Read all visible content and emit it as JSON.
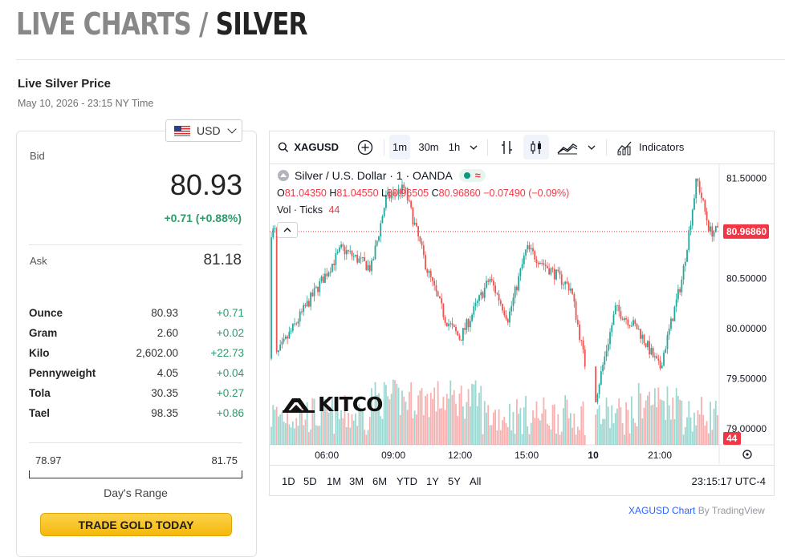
{
  "header": {
    "title_part1": "LIVE CHARTS / ",
    "title_part2": "SILVER"
  },
  "subheader": {
    "title": "Live Silver Price",
    "timestamp": "May 10, 2026 - 23:15 NY Time"
  },
  "currency_selector": {
    "value": "USD",
    "icon": "us-flag-icon"
  },
  "price_panel": {
    "bid_label": "Bid",
    "bid": "80.93",
    "bid_change": "+0.71 (+0.88%)",
    "ask_label": "Ask",
    "ask": "81.18",
    "units": [
      {
        "name": "Ounce",
        "price": "80.93",
        "change": "+0.71"
      },
      {
        "name": "Gram",
        "price": "2.60",
        "change": "+0.02"
      },
      {
        "name": "Kilo",
        "price": "2,602.00",
        "change": "+22.73"
      },
      {
        "name": "Pennyweight",
        "price": "4.05",
        "change": "+0.04"
      },
      {
        "name": "Tola",
        "price": "30.35",
        "change": "+0.27"
      },
      {
        "name": "Tael",
        "price": "98.35",
        "change": "+0.86"
      }
    ],
    "range_low": "78.97",
    "range_high": "81.75",
    "range_label": "Day's Range",
    "trade_button": "TRADE GOLD TODAY"
  },
  "chart_widget": {
    "symbol": "XAGUSD",
    "intervals": [
      "1m",
      "30m",
      "1h"
    ],
    "active_interval": "1m",
    "indicators_label": "Indicators",
    "legend_title": "Silver / U.S. Dollar · 1 · OANDA",
    "ohlc": {
      "O": "81.04350",
      "H": "81.04550",
      "L": "80.96505",
      "C": "80.96860",
      "chg": "−0.07490 (−0.09%)"
    },
    "volume_label": "Vol · Ticks",
    "volume_value": "44",
    "watermark": "KITCO",
    "ranges": [
      "1D",
      "5D",
      "1M",
      "3M",
      "6M",
      "YTD",
      "1Y",
      "5Y",
      "All"
    ],
    "clock": "23:15:17 UTC-4",
    "colors": {
      "up": "#26a69a",
      "down": "#ef5350",
      "price_label_bg": "#f23645"
    }
  },
  "chart_data": {
    "type": "candlestick",
    "x_ticks": [
      "06:00",
      "09:00",
      "12:00",
      "15:00",
      "10",
      "21:00"
    ],
    "y_ticks": [
      "81.50000",
      "81.00000",
      "80.50000",
      "80.00000",
      "79.50000",
      "79.00000"
    ],
    "ylim": [
      78.84,
      81.64
    ],
    "last_price": "80.96860",
    "last_volume": "44",
    "series_close_approx": [
      {
        "x": "03:40",
        "y": 79.7
      },
      {
        "x": "05:00",
        "y": 80.2
      },
      {
        "x": "06:40",
        "y": 80.8
      },
      {
        "x": "08:00",
        "y": 80.6
      },
      {
        "x": "08:40",
        "y": 81.3
      },
      {
        "x": "09:30",
        "y": 81.4
      },
      {
        "x": "10:30",
        "y": 80.6
      },
      {
        "x": "11:20",
        "y": 80.1
      },
      {
        "x": "12:00",
        "y": 79.9
      },
      {
        "x": "13:20",
        "y": 80.5
      },
      {
        "x": "14:10",
        "y": 80.1
      },
      {
        "x": "15:00",
        "y": 80.8
      },
      {
        "x": "16:00",
        "y": 80.6
      },
      {
        "x": "17:00",
        "y": 80.4
      },
      {
        "x": "18:00",
        "y": 79.2
      },
      {
        "x": "19:00",
        "y": 80.2
      },
      {
        "x": "20:00",
        "y": 80.0
      },
      {
        "x": "21:00",
        "y": 79.6
      },
      {
        "x": "22:00",
        "y": 80.5
      },
      {
        "x": "22:40",
        "y": 81.5
      },
      {
        "x": "23:15",
        "y": 80.97
      }
    ]
  }
}
